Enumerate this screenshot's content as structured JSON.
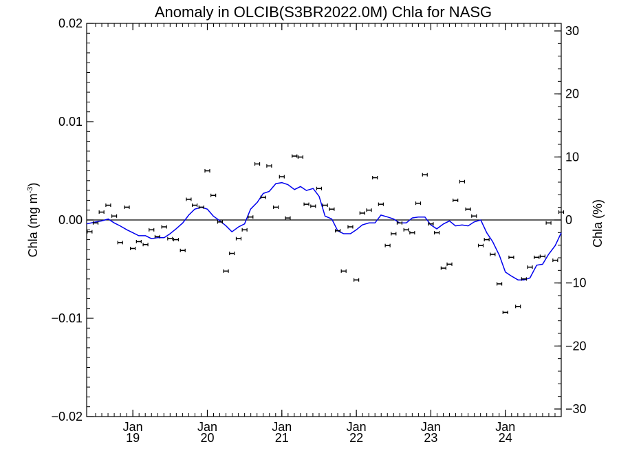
{
  "chart_data": {
    "type": "scatter",
    "title": "Anomaly in OLCIB(S3BR2022.0M) Chla for NASG",
    "ylabel_left": "Chla (mg m",
    "ylabel_left_sup": "-3",
    "ylabel_left_close": ")",
    "ylabel_right": "Chla (%)",
    "xlim": [
      2018.38,
      2024.75
    ],
    "ylim": [
      -0.02,
      0.02
    ],
    "y2lim": [
      -31.2,
      31.2
    ],
    "grid": false,
    "x_ticks": [
      {
        "pos": 2019.0,
        "month": "Jan",
        "year": "19"
      },
      {
        "pos": 2020.0,
        "month": "Jan",
        "year": "20"
      },
      {
        "pos": 2021.0,
        "month": "Jan",
        "year": "21"
      },
      {
        "pos": 2022.0,
        "month": "Jan",
        "year": "22"
      },
      {
        "pos": 2023.0,
        "month": "Jan",
        "year": "23"
      },
      {
        "pos": 2024.0,
        "month": "Jan",
        "year": "24"
      }
    ],
    "y_ticks": [
      {
        "value": 0.02,
        "label": "0.02"
      },
      {
        "value": 0.01,
        "label": "0.01"
      },
      {
        "value": 0.0,
        "label": "0.00"
      },
      {
        "value": -0.01,
        "label": "−0.01"
      },
      {
        "value": -0.02,
        "label": "−0.02"
      }
    ],
    "y2_ticks": [
      {
        "value": 30,
        "label": "30"
      },
      {
        "value": 20,
        "label": "20"
      },
      {
        "value": 10,
        "label": "10"
      },
      {
        "value": 0,
        "label": "0"
      },
      {
        "value": -10,
        "label": "−10"
      },
      {
        "value": -20,
        "label": "−20"
      },
      {
        "value": -30,
        "label": "−30"
      }
    ],
    "colors": {
      "points": "#000000",
      "line": "#0000ee",
      "zero_line": "#000000"
    },
    "series": [
      {
        "type": "scatter_errorbar",
        "points": [
          {
            "x": 2018.42,
            "y": -0.0012
          },
          {
            "x": 2018.5,
            "y": -0.0003
          },
          {
            "x": 2018.58,
            "y": 0.0008
          },
          {
            "x": 2018.67,
            "y": 0.0015
          },
          {
            "x": 2018.75,
            "y": 0.0004
          },
          {
            "x": 2018.83,
            "y": -0.0023
          },
          {
            "x": 2018.92,
            "y": 0.0013
          },
          {
            "x": 2019.0,
            "y": -0.0029
          },
          {
            "x": 2019.08,
            "y": -0.0022
          },
          {
            "x": 2019.17,
            "y": -0.0025
          },
          {
            "x": 2019.25,
            "y": -0.001
          },
          {
            "x": 2019.33,
            "y": -0.0017
          },
          {
            "x": 2019.42,
            "y": -0.0007
          },
          {
            "x": 2019.5,
            "y": -0.0019
          },
          {
            "x": 2019.58,
            "y": -0.002
          },
          {
            "x": 2019.67,
            "y": -0.0031
          },
          {
            "x": 2019.75,
            "y": 0.0021
          },
          {
            "x": 2019.83,
            "y": 0.0015
          },
          {
            "x": 2019.92,
            "y": 0.0013
          },
          {
            "x": 2020.0,
            "y": 0.005
          },
          {
            "x": 2020.08,
            "y": 0.0025
          },
          {
            "x": 2020.17,
            "y": -0.0002
          },
          {
            "x": 2020.25,
            "y": -0.0052
          },
          {
            "x": 2020.33,
            "y": -0.0034
          },
          {
            "x": 2020.42,
            "y": -0.0019
          },
          {
            "x": 2020.5,
            "y": -0.001
          },
          {
            "x": 2020.58,
            "y": 0.0003
          },
          {
            "x": 2020.67,
            "y": 0.0057
          },
          {
            "x": 2020.75,
            "y": 0.0023
          },
          {
            "x": 2020.83,
            "y": 0.0055
          },
          {
            "x": 2020.92,
            "y": 0.0013
          },
          {
            "x": 2021.0,
            "y": 0.0044
          },
          {
            "x": 2021.08,
            "y": 0.0002
          },
          {
            "x": 2021.17,
            "y": 0.0065
          },
          {
            "x": 2021.25,
            "y": 0.0064
          },
          {
            "x": 2021.33,
            "y": 0.0016
          },
          {
            "x": 2021.42,
            "y": 0.0014
          },
          {
            "x": 2021.5,
            "y": 0.0032
          },
          {
            "x": 2021.58,
            "y": 0.0015
          },
          {
            "x": 2021.67,
            "y": 0.0011
          },
          {
            "x": 2021.75,
            "y": -0.0011
          },
          {
            "x": 2021.83,
            "y": -0.0052
          },
          {
            "x": 2021.92,
            "y": -0.0007
          },
          {
            "x": 2022.0,
            "y": -0.0061
          },
          {
            "x": 2022.08,
            "y": 0.0007
          },
          {
            "x": 2022.17,
            "y": 0.001
          },
          {
            "x": 2022.25,
            "y": 0.0043
          },
          {
            "x": 2022.33,
            "y": 0.0016
          },
          {
            "x": 2022.42,
            "y": -0.0026
          },
          {
            "x": 2022.5,
            "y": -0.0014
          },
          {
            "x": 2022.58,
            "y": -0.0003
          },
          {
            "x": 2022.67,
            "y": -0.001
          },
          {
            "x": 2022.75,
            "y": -0.0013
          },
          {
            "x": 2022.83,
            "y": 0.0017
          },
          {
            "x": 2022.92,
            "y": 0.0046
          },
          {
            "x": 2023.0,
            "y": -0.0004
          },
          {
            "x": 2023.08,
            "y": -0.0013
          },
          {
            "x": 2023.17,
            "y": -0.0049
          },
          {
            "x": 2023.25,
            "y": -0.0045
          },
          {
            "x": 2023.33,
            "y": 0.002
          },
          {
            "x": 2023.42,
            "y": 0.0039
          },
          {
            "x": 2023.5,
            "y": 0.0011
          },
          {
            "x": 2023.58,
            "y": 0.0004
          },
          {
            "x": 2023.67,
            "y": -0.0026
          },
          {
            "x": 2023.75,
            "y": -0.002
          },
          {
            "x": 2023.83,
            "y": -0.0035
          },
          {
            "x": 2023.92,
            "y": -0.0065
          },
          {
            "x": 2024.0,
            "y": -0.0094
          },
          {
            "x": 2024.08,
            "y": -0.0038
          },
          {
            "x": 2024.17,
            "y": -0.0088
          },
          {
            "x": 2024.25,
            "y": -0.006
          },
          {
            "x": 2024.33,
            "y": -0.0048
          },
          {
            "x": 2024.42,
            "y": -0.0038
          },
          {
            "x": 2024.5,
            "y": -0.0037
          },
          {
            "x": 2024.58,
            "y": -0.0003
          },
          {
            "x": 2024.67,
            "y": -0.0041
          },
          {
            "x": 2024.75,
            "y": 0.0008
          }
        ]
      },
      {
        "type": "line",
        "points": [
          {
            "x": 2018.38,
            "y": -0.0004
          },
          {
            "x": 2018.5,
            "y": -0.0002
          },
          {
            "x": 2018.58,
            "y": -0.0001
          },
          {
            "x": 2018.67,
            "y": 0.0001
          },
          {
            "x": 2018.75,
            "y": -0.0003
          },
          {
            "x": 2018.83,
            "y": -0.0006
          },
          {
            "x": 2018.92,
            "y": -0.001
          },
          {
            "x": 2019.0,
            "y": -0.0013
          },
          {
            "x": 2019.08,
            "y": -0.0016
          },
          {
            "x": 2019.17,
            "y": -0.0016
          },
          {
            "x": 2019.25,
            "y": -0.0019
          },
          {
            "x": 2019.33,
            "y": -0.0018
          },
          {
            "x": 2019.42,
            "y": -0.0018
          },
          {
            "x": 2019.5,
            "y": -0.0014
          },
          {
            "x": 2019.58,
            "y": -0.0009
          },
          {
            "x": 2019.67,
            "y": -0.0003
          },
          {
            "x": 2019.75,
            "y": 0.0005
          },
          {
            "x": 2019.83,
            "y": 0.0011
          },
          {
            "x": 2019.92,
            "y": 0.0013
          },
          {
            "x": 2020.0,
            "y": 0.0011
          },
          {
            "x": 2020.08,
            "y": 0.0004
          },
          {
            "x": 2020.17,
            "y": -0.0001
          },
          {
            "x": 2020.25,
            "y": -0.0006
          },
          {
            "x": 2020.33,
            "y": -0.0012
          },
          {
            "x": 2020.42,
            "y": -0.0007
          },
          {
            "x": 2020.5,
            "y": -0.0004
          },
          {
            "x": 2020.58,
            "y": 0.0011
          },
          {
            "x": 2020.67,
            "y": 0.0018
          },
          {
            "x": 2020.75,
            "y": 0.0027
          },
          {
            "x": 2020.83,
            "y": 0.0029
          },
          {
            "x": 2020.92,
            "y": 0.0037
          },
          {
            "x": 2021.0,
            "y": 0.0038
          },
          {
            "x": 2021.08,
            "y": 0.0036
          },
          {
            "x": 2021.17,
            "y": 0.0031
          },
          {
            "x": 2021.25,
            "y": 0.0034
          },
          {
            "x": 2021.33,
            "y": 0.003
          },
          {
            "x": 2021.42,
            "y": 0.0032
          },
          {
            "x": 2021.5,
            "y": 0.0024
          },
          {
            "x": 2021.58,
            "y": 0.0004
          },
          {
            "x": 2021.67,
            "y": 0.0001
          },
          {
            "x": 2021.75,
            "y": -0.0011
          },
          {
            "x": 2021.83,
            "y": -0.0014
          },
          {
            "x": 2021.92,
            "y": -0.0014
          },
          {
            "x": 2022.0,
            "y": -0.001
          },
          {
            "x": 2022.08,
            "y": -0.0005
          },
          {
            "x": 2022.17,
            "y": -0.0003
          },
          {
            "x": 2022.25,
            "y": -0.0003
          },
          {
            "x": 2022.33,
            "y": 0.0005
          },
          {
            "x": 2022.42,
            "y": 0.0003
          },
          {
            "x": 2022.5,
            "y": 0.0001
          },
          {
            "x": 2022.58,
            "y": -0.0003
          },
          {
            "x": 2022.67,
            "y": -0.0003
          },
          {
            "x": 2022.75,
            "y": 0.0002
          },
          {
            "x": 2022.83,
            "y": 0.0003
          },
          {
            "x": 2022.92,
            "y": 0.0003
          },
          {
            "x": 2023.0,
            "y": -0.0005
          },
          {
            "x": 2023.08,
            "y": -0.0009
          },
          {
            "x": 2023.17,
            "y": -0.0004
          },
          {
            "x": 2023.25,
            "y": -0.0001
          },
          {
            "x": 2023.33,
            "y": -0.0006
          },
          {
            "x": 2023.42,
            "y": -0.0005
          },
          {
            "x": 2023.5,
            "y": -0.0006
          },
          {
            "x": 2023.58,
            "y": -0.0002
          },
          {
            "x": 2023.67,
            "y": 0.0
          },
          {
            "x": 2023.75,
            "y": -0.0013
          },
          {
            "x": 2023.83,
            "y": -0.0022
          },
          {
            "x": 2023.92,
            "y": -0.0036
          },
          {
            "x": 2024.0,
            "y": -0.0053
          },
          {
            "x": 2024.08,
            "y": -0.0057
          },
          {
            "x": 2024.17,
            "y": -0.0061
          },
          {
            "x": 2024.25,
            "y": -0.0061
          },
          {
            "x": 2024.33,
            "y": -0.0059
          },
          {
            "x": 2024.42,
            "y": -0.0046
          },
          {
            "x": 2024.5,
            "y": -0.0045
          },
          {
            "x": 2024.58,
            "y": -0.0035
          },
          {
            "x": 2024.67,
            "y": -0.0026
          },
          {
            "x": 2024.75,
            "y": -0.0013
          }
        ]
      }
    ]
  }
}
